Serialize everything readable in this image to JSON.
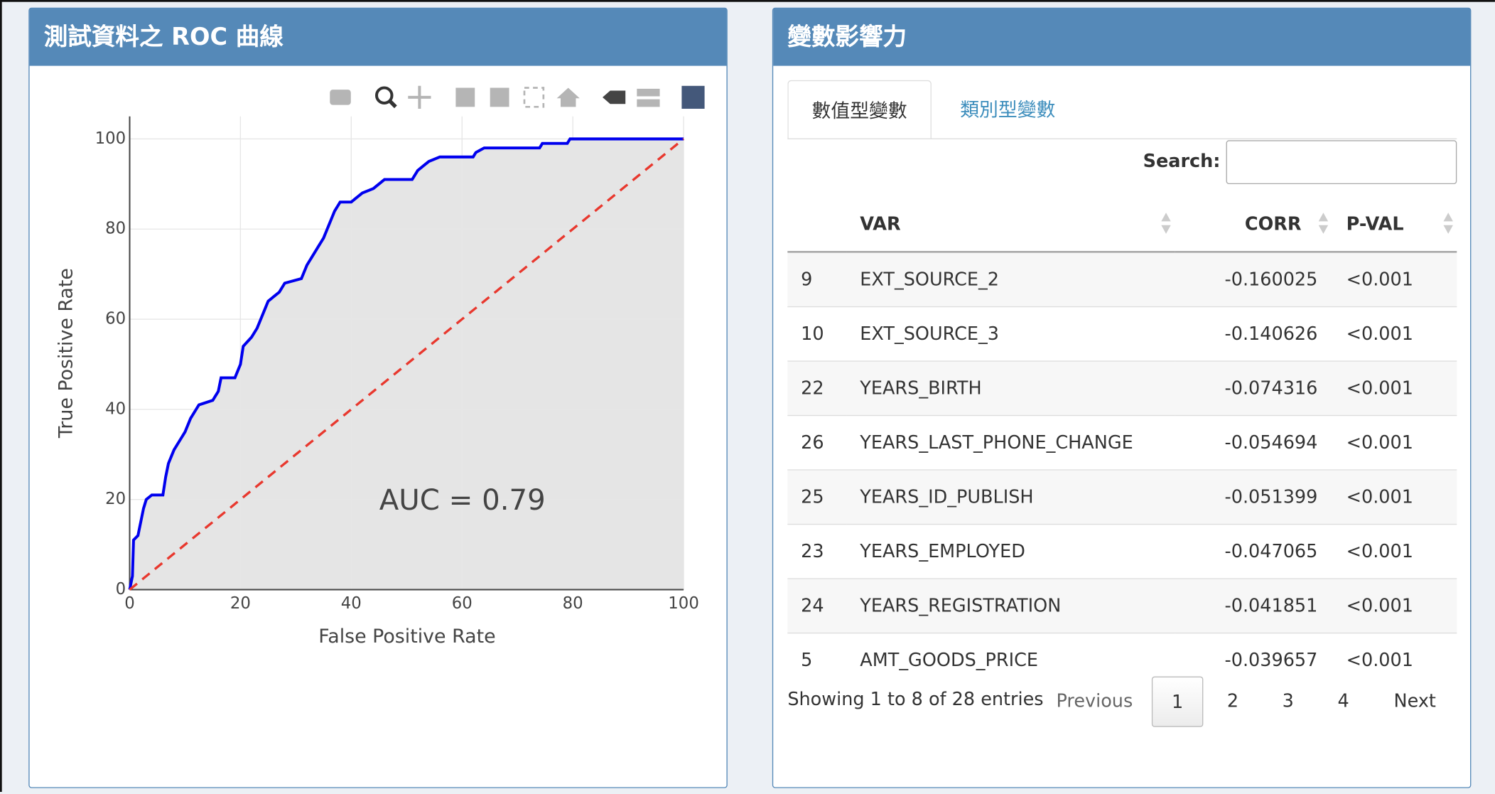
{
  "left_panel": {
    "title": "測試資料之 ROC 曲線"
  },
  "chart_data": {
    "type": "line",
    "x_label": "False Positive Rate",
    "y_label": "True Positive Rate",
    "annotation": "AUC = 0.79",
    "xlim": [
      0,
      100
    ],
    "ylim": [
      0,
      105
    ],
    "xticks": [
      0,
      20,
      40,
      60,
      80,
      100
    ],
    "yticks": [
      0,
      20,
      40,
      60,
      80,
      100
    ],
    "grid": true,
    "series": [
      {
        "color": "#0000ee",
        "fill": "#e5e5e5",
        "x": [
          0,
          0.5,
          0.7,
          1.5,
          2,
          2.5,
          3,
          4,
          6,
          6.5,
          7,
          8,
          9,
          10,
          11,
          12,
          12.5,
          15,
          16,
          16.5,
          19,
          20,
          20.5,
          22,
          23,
          24,
          25,
          26,
          27,
          28,
          31,
          32,
          33,
          34,
          35,
          36,
          37,
          38,
          40,
          41,
          42,
          44,
          46,
          51,
          52,
          53,
          54,
          56,
          62,
          62.5,
          64,
          74,
          74.5,
          79,
          79.5,
          100
        ],
        "values": [
          0,
          3,
          11,
          12,
          15,
          18,
          20,
          21,
          21,
          25,
          28,
          31,
          33,
          35,
          38,
          40,
          41,
          42,
          44,
          47,
          47,
          50,
          54,
          56,
          58,
          61,
          64,
          65,
          66,
          68,
          69,
          72,
          74,
          76,
          78,
          81,
          84,
          86,
          86,
          87,
          88,
          89,
          91,
          91,
          93,
          94,
          95,
          96,
          96,
          97,
          98,
          98,
          99,
          99,
          100,
          100
        ]
      },
      {
        "color": "#e8382e",
        "dash": true,
        "x": [
          0,
          100
        ],
        "values": [
          0,
          100
        ]
      }
    ]
  },
  "right_panel": {
    "title": "變數影響力",
    "tabs": [
      "數值型變數",
      "類別型變數"
    ],
    "active_tab": 0,
    "search_label": "Search:",
    "table": {
      "columns": [
        "VAR",
        "CORR",
        "P-VAL"
      ],
      "rows": [
        [
          "9",
          "EXT_SOURCE_2",
          "-0.160025",
          "<0.001"
        ],
        [
          "10",
          "EXT_SOURCE_3",
          "-0.140626",
          "<0.001"
        ],
        [
          "22",
          "YEARS_BIRTH",
          "-0.074316",
          "<0.001"
        ],
        [
          "26",
          "YEARS_LAST_PHONE_CHANGE",
          "-0.054694",
          "<0.001"
        ],
        [
          "25",
          "YEARS_ID_PUBLISH",
          "-0.051399",
          "<0.001"
        ],
        [
          "23",
          "YEARS_EMPLOYED",
          "-0.047065",
          "<0.001"
        ],
        [
          "24",
          "YEARS_REGISTRATION",
          "-0.041851",
          "<0.001"
        ],
        [
          "5",
          "AMT_GOODS_PRICE",
          "-0.039657",
          "<0.001"
        ]
      ]
    },
    "info": "Showing 1 to 8 of 28 entries",
    "pagination": [
      "Previous",
      "1",
      "2",
      "3",
      "4",
      "Next"
    ],
    "active_page": 1
  }
}
